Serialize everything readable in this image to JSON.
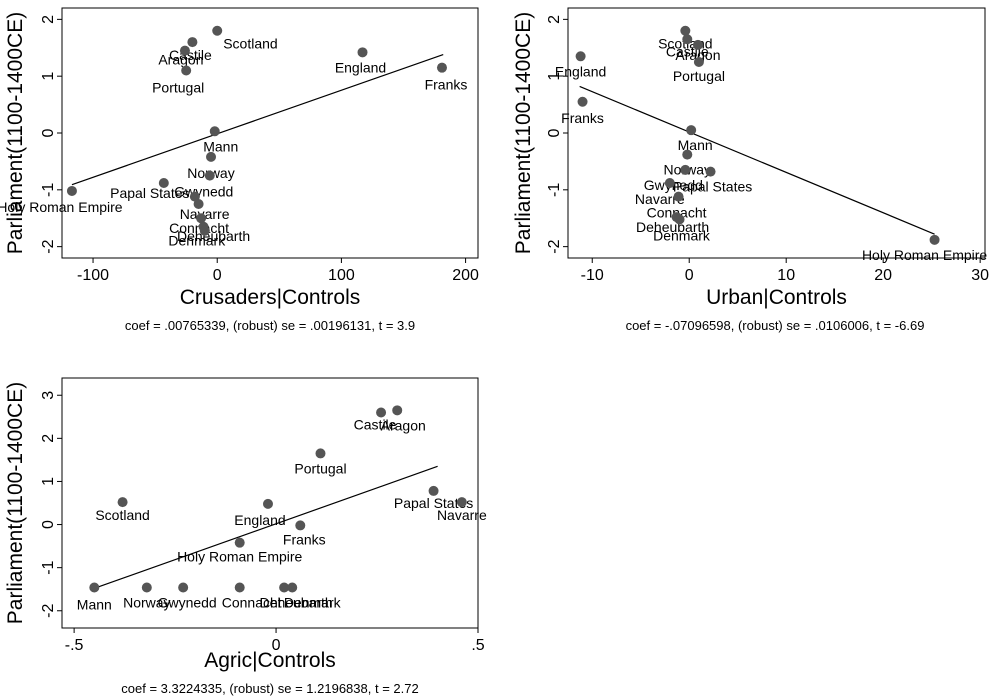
{
  "colors": {
    "marker": "#555555",
    "line": "#000000",
    "background": "#ffffff"
  },
  "chart_data": [
    {
      "type": "scatter",
      "title": "",
      "xlabel": "Crusaders|Controls",
      "ylabel": "Parliament(1100-1400CE)",
      "note": "coef = .00765339, (robust) se = .00196131, t = 3.9",
      "xticks": [
        -100,
        0,
        100,
        200
      ],
      "yticks": [
        -2,
        -1,
        0,
        1,
        2
      ],
      "xlim": [
        -125,
        210
      ],
      "ylim": [
        -2.2,
        2.2
      ],
      "fit_line": {
        "slope": 0.00765339,
        "x_range": [
          -117,
          182
        ],
        "y_at_start": -0.91,
        "y_at_end": 1.38
      },
      "points": [
        {
          "label": "Scotland",
          "x": 0,
          "y": 1.8
        },
        {
          "label": "Castile",
          "x": -20,
          "y": 1.6
        },
        {
          "label": "Aragon",
          "x": -26,
          "y": 1.45
        },
        {
          "label": "Portugal",
          "x": -25,
          "y": 1.1
        },
        {
          "label": "England",
          "x": 117,
          "y": 1.42
        },
        {
          "label": "Franks",
          "x": 181,
          "y": 1.15
        },
        {
          "label": "Mann",
          "x": -2,
          "y": 0.03
        },
        {
          "label": "Norway",
          "x": -5,
          "y": -0.42
        },
        {
          "label": "Gwynedd",
          "x": -6,
          "y": -0.75
        },
        {
          "label": "Papal States",
          "x": -43,
          "y": -0.88
        },
        {
          "label": "Holy Roman Empire",
          "x": -117,
          "y": -1.02
        },
        {
          "label": "Navarre",
          "x": -15,
          "y": -1.25
        },
        {
          "label": "Connacht",
          "x": -13,
          "y": -1.5
        },
        {
          "label": "Deheubarth",
          "x": -11,
          "y": -1.65
        },
        {
          "label": "Denmark",
          "x": -10,
          "y": -1.72
        },
        {
          "label": "",
          "x": -18,
          "y": -1.12
        }
      ]
    },
    {
      "type": "scatter",
      "title": "",
      "xlabel": "Urban|Controls",
      "ylabel": "Parliament(1100-1400CE)",
      "note": "coef = -.07096598, (robust) se = .0106006, t = -6.69",
      "xticks": [
        -10,
        0,
        10,
        20,
        30
      ],
      "yticks": [
        -2,
        -1,
        0,
        1,
        2
      ],
      "xlim": [
        -12.5,
        30.5
      ],
      "ylim": [
        -2.2,
        2.2
      ],
      "fit_line": {
        "slope": -0.07096598,
        "x_range": [
          -11.3,
          25.3
        ],
        "y_at_start": 0.82,
        "y_at_end": -1.78
      },
      "points": [
        {
          "label": "Scotland",
          "x": -0.4,
          "y": 1.8
        },
        {
          "label": "Castile",
          "x": -0.2,
          "y": 1.65
        },
        {
          "label": "Aragon",
          "x": 0.9,
          "y": 1.55
        },
        {
          "label": "Portugal",
          "x": 1.0,
          "y": 1.25
        },
        {
          "label": "England",
          "x": -11.2,
          "y": 1.35
        },
        {
          "label": "Franks",
          "x": -11.0,
          "y": 0.55
        },
        {
          "label": "Mann",
          "x": 0.2,
          "y": 0.05
        },
        {
          "label": "Norway",
          "x": -0.2,
          "y": -0.38
        },
        {
          "label": "Gwynedd",
          "x": -0.4,
          "y": -0.65
        },
        {
          "label": "Papal States",
          "x": 2.2,
          "y": -0.68
        },
        {
          "label": "Navarre",
          "x": -2.0,
          "y": -0.88
        },
        {
          "label": "Connacht",
          "x": -1.1,
          "y": -1.12
        },
        {
          "label": "Deheubarth",
          "x": -1.3,
          "y": -1.48
        },
        {
          "label": "Denmark",
          "x": -1.0,
          "y": -1.52
        },
        {
          "label": "Holy Roman Empire",
          "x": 25.3,
          "y": -1.88
        }
      ]
    },
    {
      "type": "scatter",
      "title": "",
      "xlabel": "Agric|Controls",
      "ylabel": "Parliament(1100-1400CE)",
      "note": "coef = 3.3224335, (robust) se = 1.2196838, t = 2.72",
      "xticks": [
        -0.5,
        0,
        0.5
      ],
      "yticks": [
        -2,
        -1,
        0,
        1,
        2,
        3
      ],
      "xtick_labels": [
        "-.5",
        "0",
        ".5"
      ],
      "xlim": [
        -0.53,
        0.5
      ],
      "ylim": [
        -2.4,
        3.4
      ],
      "fit_line": {
        "slope": 3.3224335,
        "x_range": [
          -0.45,
          0.4
        ],
        "y_at_start": -1.48,
        "y_at_end": 1.35
      },
      "points": [
        {
          "label": "Aragon",
          "x": 0.3,
          "y": 2.65
        },
        {
          "label": "Castile",
          "x": 0.26,
          "y": 2.6
        },
        {
          "label": "Portugal",
          "x": 0.11,
          "y": 1.65
        },
        {
          "label": "Papal States",
          "x": 0.39,
          "y": 0.78
        },
        {
          "label": "Navarre",
          "x": 0.46,
          "y": 0.52
        },
        {
          "label": "Scotland",
          "x": -0.38,
          "y": 0.52
        },
        {
          "label": "England",
          "x": -0.02,
          "y": 0.48
        },
        {
          "label": "Franks",
          "x": 0.06,
          "y": -0.02
        },
        {
          "label": "Holy Roman Empire",
          "x": -0.09,
          "y": -0.42
        },
        {
          "label": "Mann",
          "x": -0.45,
          "y": -1.46
        },
        {
          "label": "Norway",
          "x": -0.32,
          "y": -1.46
        },
        {
          "label": "Gwynedd",
          "x": -0.23,
          "y": -1.46
        },
        {
          "label": "Connacht",
          "x": -0.09,
          "y": -1.46
        },
        {
          "label": "Deheubarth",
          "x": 0.02,
          "y": -1.46
        },
        {
          "label": "Denmark",
          "x": 0.04,
          "y": -1.46
        }
      ]
    }
  ]
}
